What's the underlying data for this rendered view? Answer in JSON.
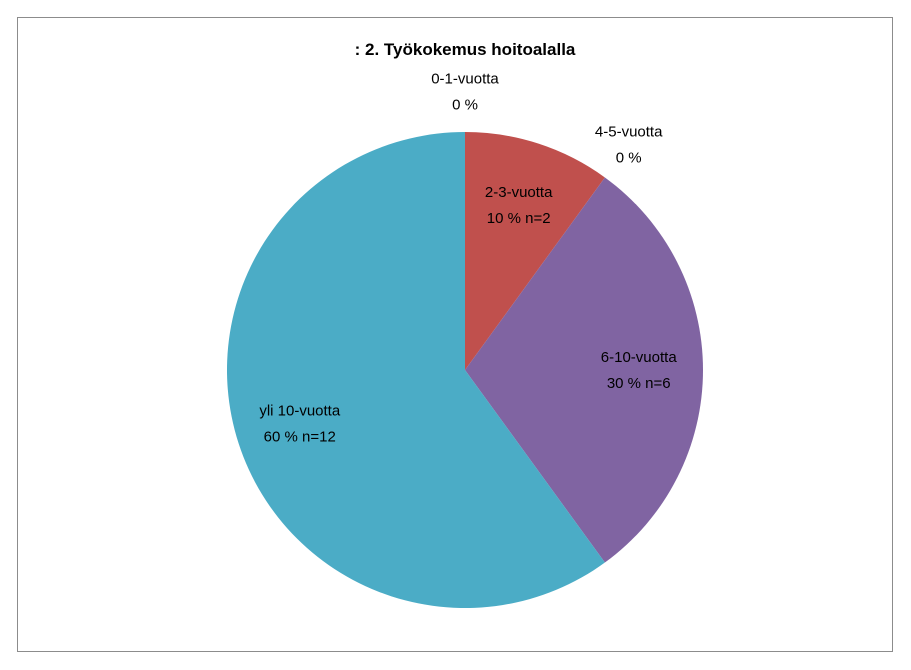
{
  "chart_data": {
    "type": "pie",
    "title": ": 2. Työkokemus hoitoalalla",
    "categories": [
      "0-1-vuotta",
      "2-3-vuotta",
      "4-5-vuotta",
      "6-10-vuotta",
      "yli 10-vuotta"
    ],
    "values": [
      0,
      10,
      0,
      30,
      60
    ],
    "value_labels": [
      "0 %",
      "10 % n=2",
      "0 %",
      "30 % n=6",
      "60 % n=12"
    ],
    "colors": [
      "#4f81bd",
      "#c0504d",
      "#9bbb59",
      "#8064a2",
      "#4bacc6"
    ]
  }
}
